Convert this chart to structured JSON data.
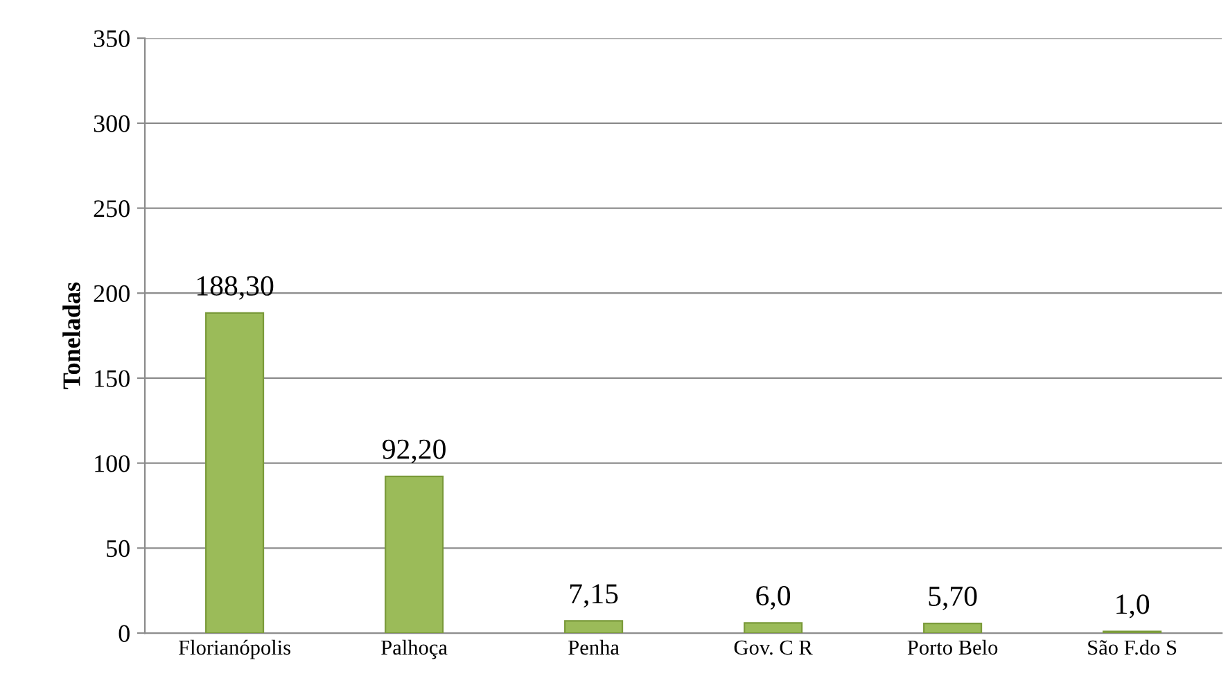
{
  "chart_data": {
    "type": "bar",
    "ylabel": "Toneladas",
    "categories": [
      "Florianópolis",
      "Palhoça",
      "Penha",
      "Gov. C R",
      "Porto Belo",
      "São F.do S"
    ],
    "values": [
      188.3,
      92.2,
      7.15,
      6.0,
      5.7,
      1.0
    ],
    "value_labels": [
      "188,30",
      "92,20",
      "7,15",
      "6,0",
      "5,70",
      "1,0"
    ],
    "color": "#9bbb59",
    "ylim": [
      0,
      350
    ],
    "yticks": [
      0,
      50,
      100,
      150,
      200,
      250,
      300,
      350
    ],
    "grid": "y"
  }
}
